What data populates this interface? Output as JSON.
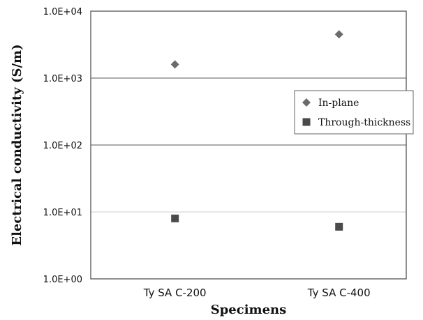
{
  "chart_data": {
    "type": "scatter",
    "title": "",
    "xlabel": "Specimens",
    "ylabel": "Electrical conductivity  (S/m)",
    "y_scale": "log",
    "ylim": [
      1,
      10000
    ],
    "y_ticks": [
      1,
      10,
      100,
      1000,
      10000
    ],
    "y_tick_labels": [
      "1.0E+00",
      "1.0E+01",
      "1.0E+02",
      "1.0E+03",
      "1.0E+04"
    ],
    "categories": [
      "Ty SA C-200",
      "Ty SA C-400"
    ],
    "grid": "horizontal",
    "legend_position": "right",
    "series": [
      {
        "name": "In-plane",
        "marker": "diamond",
        "color": "#6b6b6b",
        "values": [
          1600,
          4500
        ]
      },
      {
        "name": "Through-thickness",
        "marker": "square",
        "color": "#4a4a4a",
        "values": [
          8,
          6
        ]
      }
    ]
  }
}
